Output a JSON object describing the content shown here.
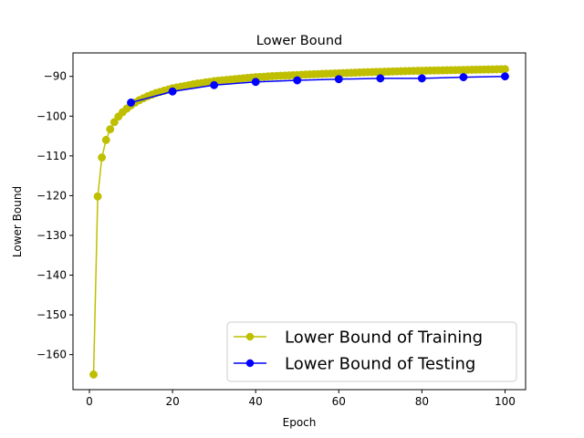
{
  "chart_data": {
    "type": "line",
    "title": "Lower Bound",
    "xlabel": "Epoch",
    "ylabel": "Lower Bound",
    "xlim": [
      -3.95,
      104.95
    ],
    "ylim": [
      -168.8,
      -84.1
    ],
    "xticks": [
      0,
      20,
      40,
      60,
      80,
      100
    ],
    "yticks": [
      -160,
      -150,
      -140,
      -130,
      -120,
      -110,
      -100,
      -90
    ],
    "grid": false,
    "legend_position": "lower-right",
    "series": [
      {
        "name": "Lower Bound of Training",
        "color": "#bfbf00",
        "marker": "circle",
        "x": [
          1,
          2,
          3,
          4,
          5,
          6,
          7,
          8,
          9,
          10,
          11,
          12,
          13,
          14,
          15,
          16,
          17,
          18,
          19,
          20,
          21,
          22,
          23,
          24,
          25,
          26,
          27,
          28,
          29,
          30,
          31,
          32,
          33,
          34,
          35,
          36,
          37,
          38,
          39,
          40,
          41,
          42,
          43,
          44,
          45,
          46,
          47,
          48,
          49,
          50,
          51,
          52,
          53,
          54,
          55,
          56,
          57,
          58,
          59,
          60,
          61,
          62,
          63,
          64,
          65,
          66,
          67,
          68,
          69,
          70,
          71,
          72,
          73,
          74,
          75,
          76,
          77,
          78,
          79,
          80,
          81,
          82,
          83,
          84,
          85,
          86,
          87,
          88,
          89,
          90,
          91,
          92,
          93,
          94,
          95,
          96,
          97,
          98,
          99,
          100
        ],
        "y": [
          -165.0,
          -120.2,
          -110.4,
          -106.0,
          -103.3,
          -101.5,
          -100.1,
          -99.0,
          -98.1,
          -97.3,
          -96.6,
          -96.0,
          -95.5,
          -95.0,
          -94.6,
          -94.2,
          -93.9,
          -93.6,
          -93.3,
          -93.0,
          -92.8,
          -92.6,
          -92.4,
          -92.2,
          -92.0,
          -91.8,
          -91.7,
          -91.5,
          -91.4,
          -91.2,
          -91.1,
          -91.0,
          -90.9,
          -90.8,
          -90.7,
          -90.6,
          -90.5,
          -90.4,
          -90.3,
          -90.2,
          -90.15,
          -90.1,
          -90.0,
          -89.95,
          -89.9,
          -89.85,
          -89.8,
          -89.75,
          -89.7,
          -89.65,
          -89.6,
          -89.55,
          -89.5,
          -89.46,
          -89.42,
          -89.38,
          -89.34,
          -89.3,
          -89.26,
          -89.22,
          -89.18,
          -89.14,
          -89.1,
          -89.06,
          -89.02,
          -88.98,
          -88.95,
          -88.92,
          -88.89,
          -88.86,
          -88.83,
          -88.8,
          -88.77,
          -88.74,
          -88.71,
          -88.68,
          -88.65,
          -88.62,
          -88.6,
          -88.58,
          -88.56,
          -88.54,
          -88.52,
          -88.5,
          -88.48,
          -88.46,
          -88.44,
          -88.42,
          -88.4,
          -88.38,
          -88.36,
          -88.34,
          -88.32,
          -88.3,
          -88.28,
          -88.26,
          -88.24,
          -88.22,
          -88.2,
          -88.18
        ]
      },
      {
        "name": "Lower Bound of Testing",
        "color": "#0000ff",
        "marker": "circle",
        "x": [
          10,
          20,
          30,
          40,
          50,
          60,
          70,
          80,
          90,
          100
        ],
        "y": [
          -96.6,
          -93.8,
          -92.2,
          -91.4,
          -91.0,
          -90.7,
          -90.5,
          -90.5,
          -90.2,
          -90.0
        ]
      }
    ]
  }
}
